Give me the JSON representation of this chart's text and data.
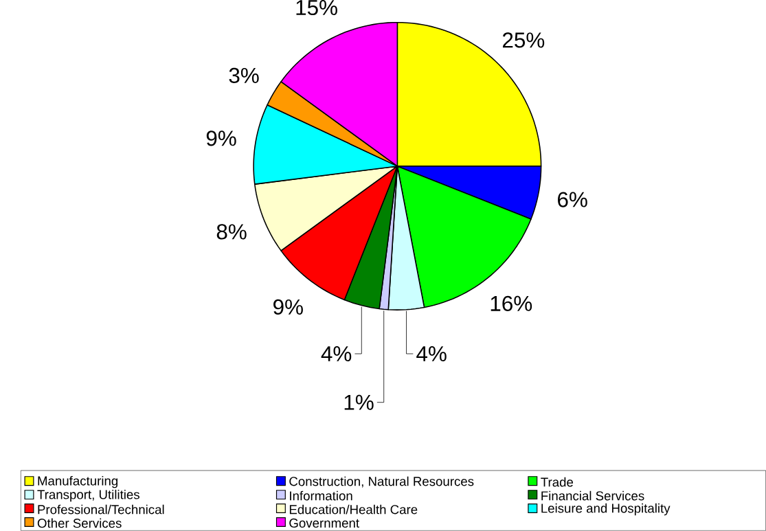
{
  "chart_data": {
    "type": "pie",
    "categories": [
      "Manufacturing",
      "Construction, Natural Resources",
      "Trade",
      "Transport, Utilities",
      "Information",
      "Financial Services",
      "Professional/Technical",
      "Education/Health Care",
      "Leisure and Hospitality",
      "Other Services",
      "Government"
    ],
    "values": [
      25,
      6,
      16,
      4,
      1,
      4,
      9,
      8,
      9,
      3,
      15
    ],
    "value_labels": [
      "25%",
      "6%",
      "16%",
      "4%",
      "1%",
      "4%",
      "9%",
      "8%",
      "9%",
      "3%",
      "15%"
    ],
    "colors": [
      "#ffff00",
      "#0000ff",
      "#00ff00",
      "#ccffff",
      "#ccccff",
      "#008000",
      "#ff0000",
      "#ffffcc",
      "#00ffff",
      "#ff9900",
      "#ff00ff"
    ],
    "legend": "bottom"
  }
}
